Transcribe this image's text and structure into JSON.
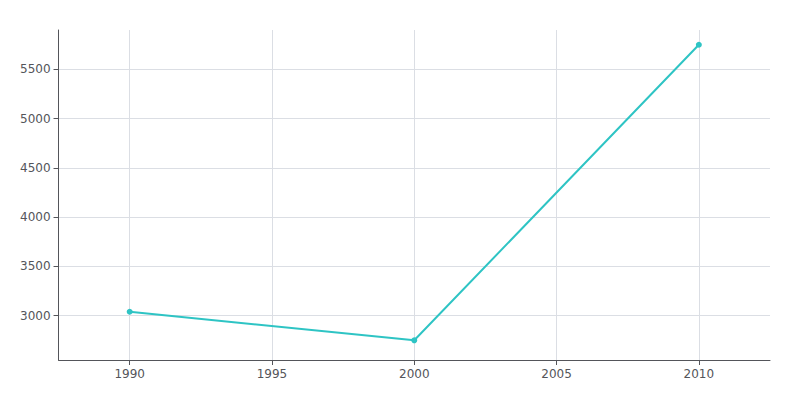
{
  "chart_data": {
    "type": "line",
    "x": [
      1990,
      2000,
      2010
    ],
    "values": [
      3040,
      2750,
      5750
    ],
    "color": "#2EC4C4",
    "marker": "circle",
    "xlim": [
      1987.5,
      2012.5
    ],
    "ylim": [
      2550,
      5900
    ],
    "xticks": [
      1990,
      1995,
      2000,
      2005,
      2010
    ],
    "yticks": [
      3000,
      3500,
      4000,
      4500,
      5000,
      5500
    ],
    "grid": true
  }
}
